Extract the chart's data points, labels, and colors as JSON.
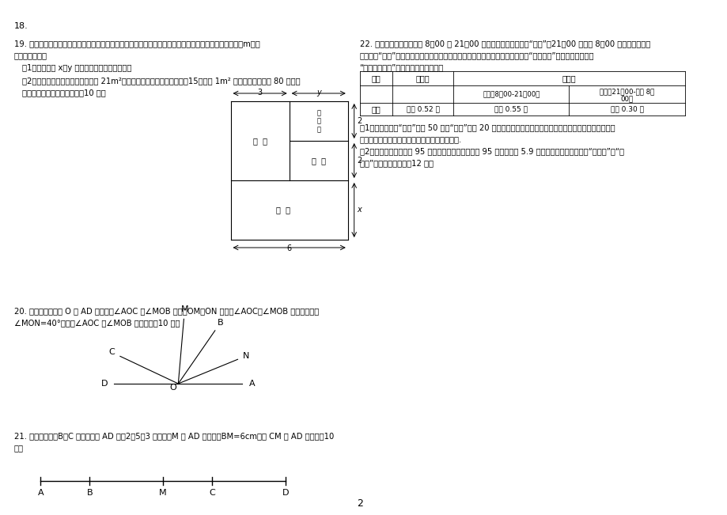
{
  "bg_color": "#ffffff",
  "page_number": "2",
  "problem_18": "18.",
  "problem_19_title": "19. 小王家购了一套经济适用房，装家准备将地面铺上地砖，地面结构如图所示，根据图中的数据（单位：m），",
  "problem_19_line2": "解答下列问题：",
  "problem_19_q1": "（1）写出用含 x、y 的代数式表示地面总面积；",
  "problem_19_q2": "（2）已知客厅面积比卫生间面积多 21m²，且地面总面积是卫生间面积的15倍，铺 1m² 地砖的平均费用为 80 元，求",
  "problem_19_q2b": "輔地砖的总费用为多少元？（10 分）",
  "problem_22_title": "22. 据电力部门统计，每天 8：00 至 21：00 是用电的高峰期，简称“峰时”，21：00 至次日 8：00 是用电的低谷时",
  "problem_22_line2": "期，简称“谷时”，为了缓解供电需求紧张矛盾，某市电力部门于本月初统一换装“峰谷分时”电表，对用电实行",
  "problem_22_line3": "“峰谷分时电价”新政策，具体见下表：",
  "table_header1": "时间",
  "table_header2": "换表前",
  "table_header3": "换表后",
  "table_subheader1": "峰时（8：00-21：00）",
  "table_subheader2": "谷时（21：00-次日 8：00）",
  "table_row1_label": "电价",
  "table_row1_col1": "每度 0.52 元",
  "table_row1_col2": "每度 0.55 元",
  "table_row1_col3": "每度 0.30 元",
  "problem_22_q1": "（1）小张家上月“峰时”用电 50 度，“谷时”用电 20 度，若上月初换表，则相对于换表前小张家的电费是增多了",
  "problem_22_q1b": "还是减少了？增多或减少了多少元？请说明理由.",
  "problem_22_q2": "（2）小张家这个月用电 95 度，经测算比换表前使用 95 度电节省了 5.9 元，问小张家这个月使用“峰时电”和“谷",
  "problem_22_q2b": "时电”分别是多少度？（12 分）",
  "problem_20_title": "20. 如图所示，已知 O 为 AD 上一点，∠AOC 与∠MOB 互补，OM、ON 分别是∠AOC、∠MOB 的平分线，若",
  "problem_20_line2": "∠MON=40°，试求∠AOC 与∠MOB 的度数。（10 分）",
  "problem_21_title": "21. 已知，如图，B、C 两点把线段 AD 分成2：5：3 三部分，M 为 AD 的中点，BM=6cm，求 CM 和 AD 的长。（10",
  "problem_21_line2": "分）",
  "rays": {
    "A": 0,
    "N": 22,
    "B": 55,
    "M": 85,
    "C": 155,
    "D": 180
  }
}
